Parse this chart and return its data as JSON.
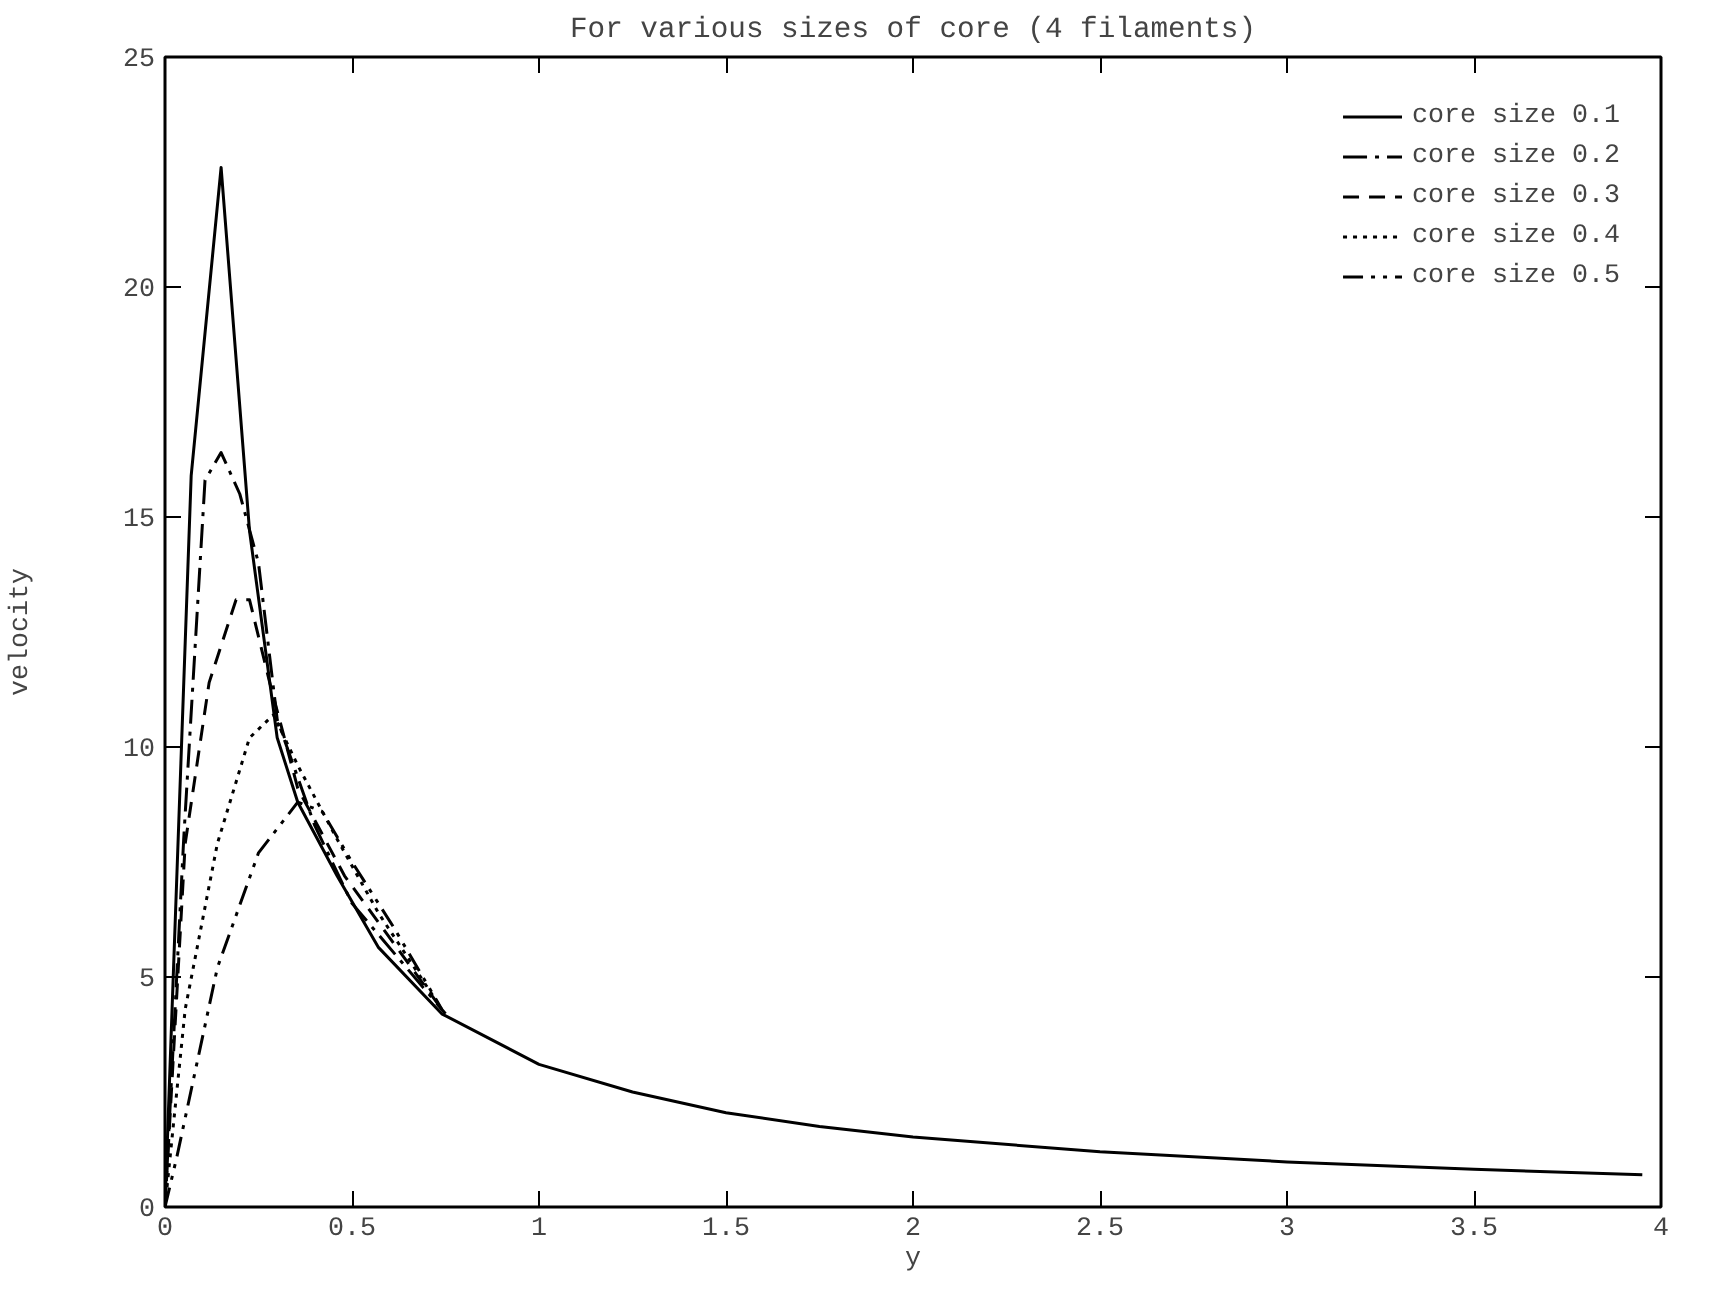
{
  "chart_data": {
    "type": "line",
    "title": "For various sizes of core (4 filaments)",
    "xlabel": "y",
    "ylabel": "velocity",
    "xlim": [
      0,
      4
    ],
    "ylim": [
      0,
      25
    ],
    "xticks": [
      0,
      0.5,
      1,
      1.5,
      2,
      2.5,
      3,
      3.5,
      4
    ],
    "yticks": [
      0,
      5,
      10,
      15,
      20,
      25
    ],
    "grid": false,
    "legend": "top right",
    "series": [
      {
        "name": "core size 0.1",
        "color": "#000000",
        "line_style": "solid",
        "x": [
          0,
          0.07,
          0.15,
          0.226,
          0.3,
          0.355,
          0.46,
          0.57,
          0.74,
          1.0,
          1.25,
          1.5,
          1.75,
          2.0,
          2.5,
          3.0,
          3.5,
          3.95
        ],
        "values": [
          0,
          15.9,
          22.6,
          14.7,
          10.2,
          8.8,
          7.2,
          5.65,
          4.2,
          3.1,
          2.5,
          2.05,
          1.75,
          1.52,
          1.2,
          0.98,
          0.82,
          0.7
        ]
      },
      {
        "name": "core size 0.2",
        "color": "#000000",
        "line_style": "dashdot",
        "x": [
          0,
          0.05,
          0.107,
          0.15,
          0.2,
          0.25,
          0.3,
          0.4,
          0.5,
          0.75
        ],
        "values": [
          0,
          8.0,
          15.8,
          16.4,
          15.5,
          14.0,
          10.6,
          8.3,
          6.6,
          4.2
        ]
      },
      {
        "name": "core size 0.3",
        "color": "#000000",
        "line_style": "dashed",
        "x": [
          0,
          0.054,
          0.118,
          0.19,
          0.226,
          0.28,
          0.355,
          0.48,
          0.74
        ],
        "values": [
          0,
          7.9,
          11.4,
          13.2,
          13.2,
          11.4,
          9.1,
          7.2,
          4.3
        ]
      },
      {
        "name": "core size 0.4",
        "color": "#000000",
        "line_style": "dotted",
        "x": [
          0,
          0.054,
          0.14,
          0.226,
          0.29,
          0.355,
          0.46,
          0.57,
          0.74
        ],
        "values": [
          0,
          4.3,
          7.9,
          10.2,
          10.7,
          9.6,
          8.0,
          6.4,
          4.3
        ]
      },
      {
        "name": "core size 0.5",
        "color": "#000000",
        "line_style": "dotdash",
        "x": [
          0,
          0.032,
          0.14,
          0.25,
          0.355,
          0.42,
          0.5,
          0.61,
          0.74
        ],
        "values": [
          0,
          1.1,
          5.2,
          7.7,
          8.8,
          8.6,
          7.5,
          6.1,
          4.3
        ]
      }
    ]
  }
}
